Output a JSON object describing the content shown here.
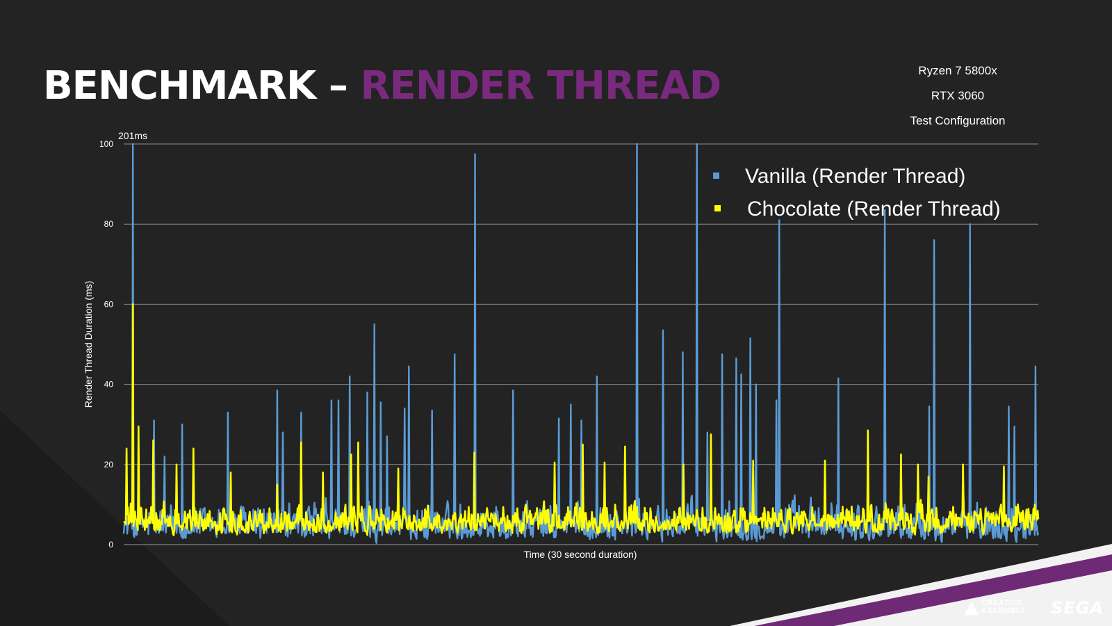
{
  "slide": {
    "title_part1": "BENCHMARK –",
    "title_part2": "RENDER THREAD",
    "config_lines": [
      "Ryzen 7 5800x",
      "RTX 3060",
      "Test Configuration"
    ],
    "logos": {
      "creative_assembly": [
        "CREATIVE",
        "ASSEMBLY"
      ],
      "sega": "SEGA"
    },
    "colors": {
      "title_accent": "#7a2a7e",
      "background": "#232323",
      "corner_stripe": "#6e2a74"
    }
  },
  "chart_data": {
    "type": "line",
    "xlabel": "Time (30 second duration)",
    "ylabel": "Render Thread Duration (ms)",
    "ylim": [
      0,
      100
    ],
    "yticks": [
      0,
      20,
      40,
      60,
      80,
      100
    ],
    "grid": true,
    "legend_position": "top-right",
    "annotation": "201ms",
    "series": [
      {
        "name": "Vanilla (Render Thread)",
        "color": "#5b9bd5",
        "samples": 1300,
        "baseline_range": [
          0,
          15
        ],
        "spikes": [
          {
            "t": 0.01,
            "v": 100
          },
          {
            "t": 0.033,
            "v": 31
          },
          {
            "t": 0.045,
            "v": 22
          },
          {
            "t": 0.064,
            "v": 30
          },
          {
            "t": 0.114,
            "v": 33
          },
          {
            "t": 0.168,
            "v": 38.5
          },
          {
            "t": 0.174,
            "v": 28
          },
          {
            "t": 0.194,
            "v": 33
          },
          {
            "t": 0.227,
            "v": 36
          },
          {
            "t": 0.235,
            "v": 36
          },
          {
            "t": 0.247,
            "v": 42
          },
          {
            "t": 0.266,
            "v": 38
          },
          {
            "t": 0.274,
            "v": 55
          },
          {
            "t": 0.281,
            "v": 35.5
          },
          {
            "t": 0.288,
            "v": 27
          },
          {
            "t": 0.307,
            "v": 34
          },
          {
            "t": 0.312,
            "v": 44.5
          },
          {
            "t": 0.337,
            "v": 33.5
          },
          {
            "t": 0.362,
            "v": 47.5
          },
          {
            "t": 0.384,
            "v": 97.5
          },
          {
            "t": 0.426,
            "v": 38.5
          },
          {
            "t": 0.476,
            "v": 31.5
          },
          {
            "t": 0.489,
            "v": 35
          },
          {
            "t": 0.5,
            "v": 31
          },
          {
            "t": 0.517,
            "v": 42
          },
          {
            "t": 0.561,
            "v": 100
          },
          {
            "t": 0.59,
            "v": 53.5
          },
          {
            "t": 0.611,
            "v": 48
          },
          {
            "t": 0.627,
            "v": 100
          },
          {
            "t": 0.638,
            "v": 28
          },
          {
            "t": 0.654,
            "v": 47.5
          },
          {
            "t": 0.67,
            "v": 46.5
          },
          {
            "t": 0.675,
            "v": 42.5
          },
          {
            "t": 0.685,
            "v": 51.5
          },
          {
            "t": 0.691,
            "v": 40
          },
          {
            "t": 0.714,
            "v": 36
          },
          {
            "t": 0.717,
            "v": 81
          },
          {
            "t": 0.781,
            "v": 41.5
          },
          {
            "t": 0.832,
            "v": 83.5
          },
          {
            "t": 0.881,
            "v": 34.5
          },
          {
            "t": 0.886,
            "v": 76
          },
          {
            "t": 0.925,
            "v": 80
          },
          {
            "t": 0.968,
            "v": 34.5
          },
          {
            "t": 0.974,
            "v": 29.5
          },
          {
            "t": 0.997,
            "v": 44.5
          }
        ]
      },
      {
        "name": "Chocolate (Render Thread)",
        "color": "#ffff00",
        "samples": 1300,
        "baseline_range": [
          2,
          13
        ],
        "spikes": [
          {
            "t": 0.003,
            "v": 24
          },
          {
            "t": 0.01,
            "v": 60
          },
          {
            "t": 0.016,
            "v": 29.5
          },
          {
            "t": 0.032,
            "v": 26
          },
          {
            "t": 0.058,
            "v": 20
          },
          {
            "t": 0.076,
            "v": 24
          },
          {
            "t": 0.117,
            "v": 18
          },
          {
            "t": 0.168,
            "v": 15
          },
          {
            "t": 0.194,
            "v": 25.5
          },
          {
            "t": 0.218,
            "v": 18
          },
          {
            "t": 0.249,
            "v": 22.5
          },
          {
            "t": 0.256,
            "v": 25.5
          },
          {
            "t": 0.3,
            "v": 19
          },
          {
            "t": 0.383,
            "v": 23
          },
          {
            "t": 0.471,
            "v": 20.5
          },
          {
            "t": 0.502,
            "v": 25
          },
          {
            "t": 0.526,
            "v": 20.5
          },
          {
            "t": 0.548,
            "v": 24.5
          },
          {
            "t": 0.612,
            "v": 20
          },
          {
            "t": 0.642,
            "v": 27.5
          },
          {
            "t": 0.688,
            "v": 21
          },
          {
            "t": 0.767,
            "v": 21
          },
          {
            "t": 0.814,
            "v": 28.5
          },
          {
            "t": 0.85,
            "v": 22.5
          },
          {
            "t": 0.868,
            "v": 20
          },
          {
            "t": 0.88,
            "v": 17
          },
          {
            "t": 0.918,
            "v": 20
          },
          {
            "t": 0.962,
            "v": 19.5
          },
          {
            "t": 0.996,
            "v": 10
          }
        ]
      }
    ]
  }
}
